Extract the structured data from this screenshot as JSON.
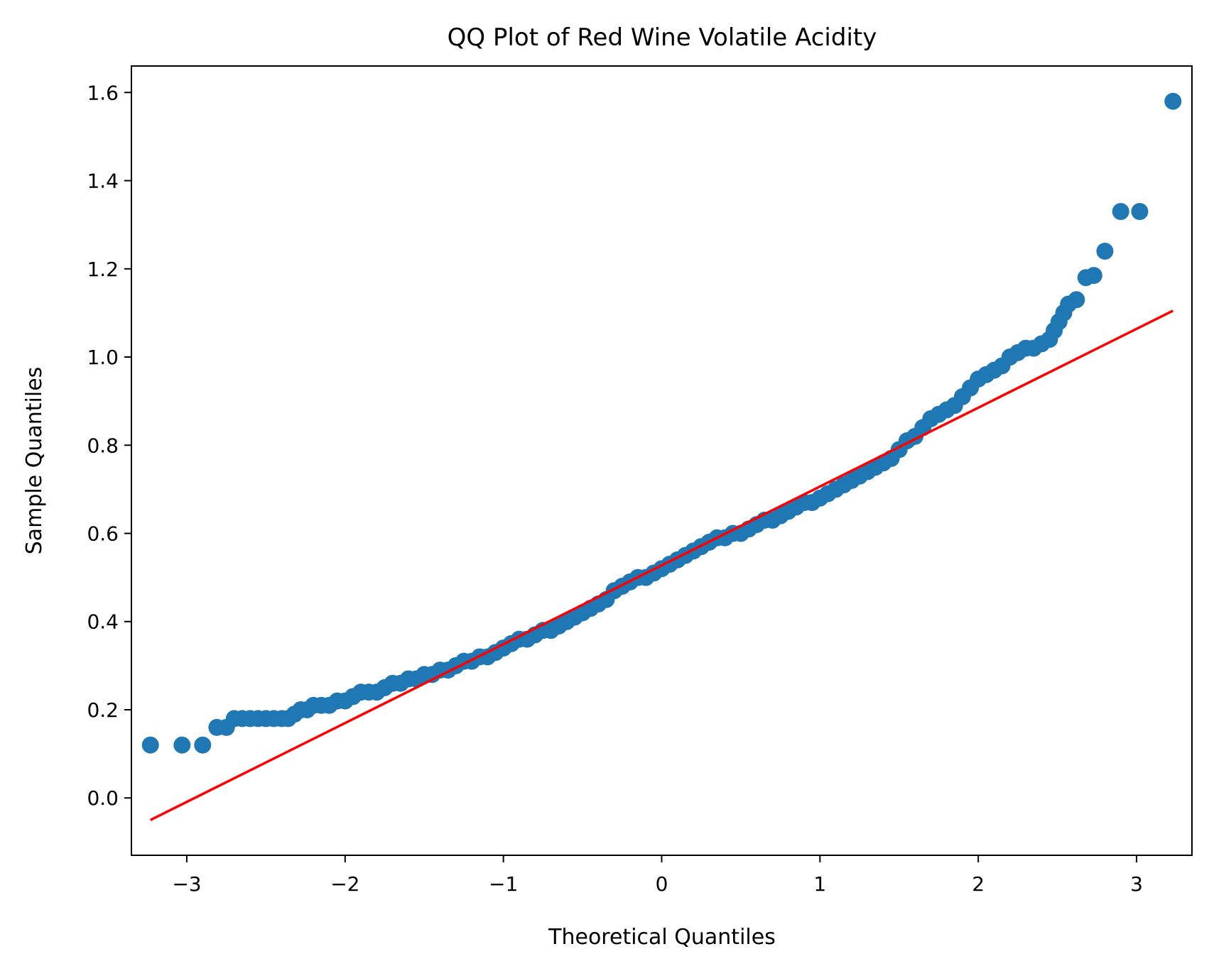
{
  "chart_data": {
    "type": "scatter",
    "title": "QQ Plot of Red Wine Volatile Acidity",
    "xlabel": "Theoretical Quantiles",
    "ylabel": "Sample Quantiles",
    "xlim": [
      -3.35,
      3.35
    ],
    "ylim": [
      -0.13,
      1.66
    ],
    "xticks": [
      -3,
      -2,
      -1,
      0,
      1,
      2,
      3
    ],
    "xtick_labels": [
      "−3",
      "−2",
      "−1",
      "0",
      "1",
      "2",
      "3"
    ],
    "yticks": [
      0.0,
      0.2,
      0.4,
      0.6,
      0.8,
      1.0,
      1.2,
      1.4,
      1.6
    ],
    "ytick_labels": [
      "0.0",
      "0.2",
      "0.4",
      "0.6",
      "0.8",
      "1.0",
      "1.2",
      "1.4",
      "1.6"
    ],
    "grid": false,
    "colors": {
      "points": "#1f77b4",
      "reference_line": "#ff0000"
    },
    "reference_line": {
      "x": [
        -3.23,
        3.23
      ],
      "y": [
        -0.05,
        1.105
      ]
    },
    "series": [
      {
        "points": [
          [
            -3.23,
            0.12
          ],
          [
            -3.03,
            0.12
          ],
          [
            -2.9,
            0.12
          ],
          [
            -2.81,
            0.16
          ],
          [
            -2.75,
            0.16
          ],
          [
            -2.7,
            0.18
          ],
          [
            -2.65,
            0.18
          ],
          [
            -2.6,
            0.18
          ],
          [
            -2.55,
            0.18
          ],
          [
            -2.5,
            0.18
          ],
          [
            -2.45,
            0.18
          ],
          [
            -2.4,
            0.18
          ],
          [
            -2.36,
            0.18
          ],
          [
            -2.32,
            0.19
          ],
          [
            -2.28,
            0.2
          ],
          [
            -2.24,
            0.2
          ],
          [
            -2.2,
            0.21
          ],
          [
            -2.15,
            0.21
          ],
          [
            -2.1,
            0.21
          ],
          [
            -2.05,
            0.22
          ],
          [
            -2.0,
            0.22
          ],
          [
            -1.95,
            0.23
          ],
          [
            -1.9,
            0.24
          ],
          [
            -1.85,
            0.24
          ],
          [
            -1.8,
            0.24
          ],
          [
            -1.75,
            0.25
          ],
          [
            -1.7,
            0.26
          ],
          [
            -1.65,
            0.26
          ],
          [
            -1.6,
            0.27
          ],
          [
            -1.55,
            0.27
          ],
          [
            -1.5,
            0.28
          ],
          [
            -1.45,
            0.28
          ],
          [
            -1.4,
            0.29
          ],
          [
            -1.35,
            0.29
          ],
          [
            -1.3,
            0.3
          ],
          [
            -1.25,
            0.31
          ],
          [
            -1.2,
            0.31
          ],
          [
            -1.15,
            0.32
          ],
          [
            -1.1,
            0.32
          ],
          [
            -1.05,
            0.33
          ],
          [
            -1.0,
            0.34
          ],
          [
            -0.95,
            0.35
          ],
          [
            -0.9,
            0.36
          ],
          [
            -0.85,
            0.36
          ],
          [
            -0.8,
            0.37
          ],
          [
            -0.75,
            0.38
          ],
          [
            -0.7,
            0.38
          ],
          [
            -0.65,
            0.39
          ],
          [
            -0.6,
            0.4
          ],
          [
            -0.55,
            0.41
          ],
          [
            -0.5,
            0.42
          ],
          [
            -0.45,
            0.43
          ],
          [
            -0.4,
            0.44
          ],
          [
            -0.35,
            0.45
          ],
          [
            -0.3,
            0.47
          ],
          [
            -0.25,
            0.48
          ],
          [
            -0.2,
            0.49
          ],
          [
            -0.15,
            0.5
          ],
          [
            -0.1,
            0.5
          ],
          [
            -0.05,
            0.51
          ],
          [
            0.0,
            0.52
          ],
          [
            0.05,
            0.53
          ],
          [
            0.1,
            0.54
          ],
          [
            0.15,
            0.55
          ],
          [
            0.2,
            0.56
          ],
          [
            0.25,
            0.57
          ],
          [
            0.3,
            0.58
          ],
          [
            0.35,
            0.59
          ],
          [
            0.4,
            0.59
          ],
          [
            0.45,
            0.6
          ],
          [
            0.5,
            0.6
          ],
          [
            0.55,
            0.61
          ],
          [
            0.6,
            0.62
          ],
          [
            0.65,
            0.63
          ],
          [
            0.7,
            0.63
          ],
          [
            0.75,
            0.64
          ],
          [
            0.8,
            0.65
          ],
          [
            0.85,
            0.66
          ],
          [
            0.9,
            0.67
          ],
          [
            0.95,
            0.67
          ],
          [
            1.0,
            0.68
          ],
          [
            1.05,
            0.69
          ],
          [
            1.1,
            0.7
          ],
          [
            1.15,
            0.71
          ],
          [
            1.2,
            0.72
          ],
          [
            1.25,
            0.73
          ],
          [
            1.3,
            0.74
          ],
          [
            1.35,
            0.75
          ],
          [
            1.4,
            0.76
          ],
          [
            1.45,
            0.77
          ],
          [
            1.5,
            0.79
          ],
          [
            1.55,
            0.81
          ],
          [
            1.6,
            0.82
          ],
          [
            1.65,
            0.84
          ],
          [
            1.7,
            0.86
          ],
          [
            1.75,
            0.87
          ],
          [
            1.8,
            0.88
          ],
          [
            1.85,
            0.89
          ],
          [
            1.9,
            0.91
          ],
          [
            1.95,
            0.93
          ],
          [
            2.0,
            0.95
          ],
          [
            2.05,
            0.96
          ],
          [
            2.1,
            0.97
          ],
          [
            2.15,
            0.98
          ],
          [
            2.2,
            1.0
          ],
          [
            2.25,
            1.01
          ],
          [
            2.3,
            1.02
          ],
          [
            2.35,
            1.02
          ],
          [
            2.4,
            1.03
          ],
          [
            2.45,
            1.04
          ],
          [
            2.48,
            1.06
          ],
          [
            2.51,
            1.08
          ],
          [
            2.54,
            1.1
          ],
          [
            2.57,
            1.12
          ],
          [
            2.62,
            1.13
          ],
          [
            2.68,
            1.18
          ],
          [
            2.73,
            1.185
          ],
          [
            2.8,
            1.24
          ],
          [
            2.9,
            1.33
          ],
          [
            3.02,
            1.33
          ],
          [
            3.23,
            1.58
          ]
        ]
      }
    ]
  }
}
